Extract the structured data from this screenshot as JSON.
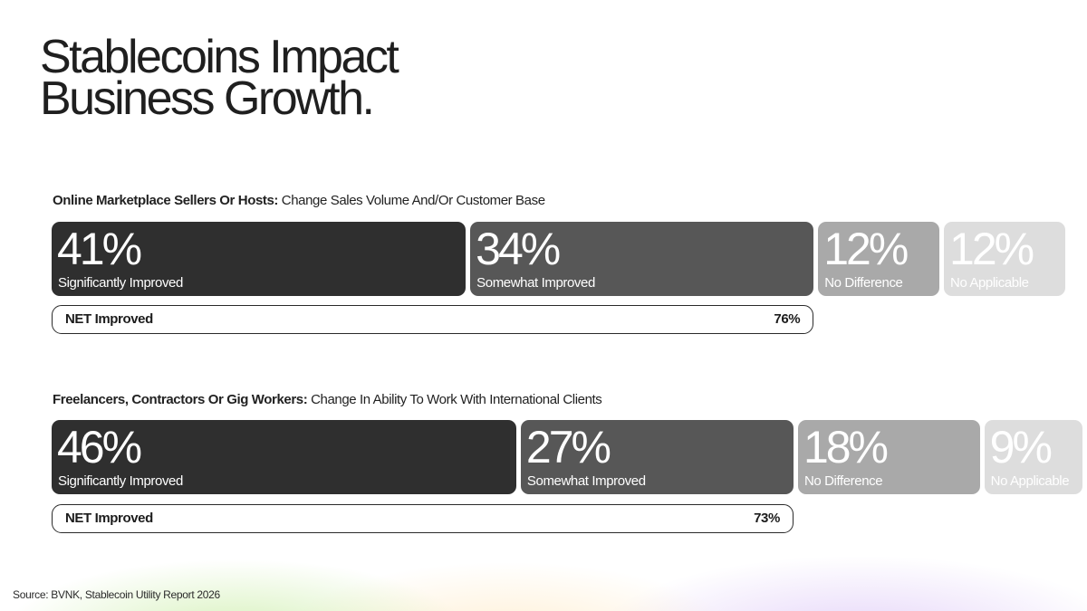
{
  "page": {
    "title_line1": "Stablecoins Impact",
    "title_line2": "Business Growth.",
    "source": "Source: BVNK, Stablecoin Utility Report 2026"
  },
  "chart_data": [
    {
      "type": "bar",
      "orientation": "horizontal-stacked",
      "title_bold": "Online Marketplace Sellers Or Hosts:",
      "title_rest": " Change Sales Volume And/Or Customer Base",
      "segments": [
        {
          "label": "Significantly Improved",
          "value": 41,
          "value_label": "41%",
          "color": "#2f2f2f"
        },
        {
          "label": "Somewhat Improved",
          "value": 34,
          "value_label": "34%",
          "color": "#575757"
        },
        {
          "label": "No Difference",
          "value": 12,
          "value_label": "12%",
          "color": "#a9a9a9"
        },
        {
          "label": "No Applicable",
          "value": 12,
          "value_label": "12%",
          "color": "#dddddd"
        }
      ],
      "net": {
        "label": "NET Improved",
        "value": 76,
        "value_label": "76%"
      }
    },
    {
      "type": "bar",
      "orientation": "horizontal-stacked",
      "title_bold": "Freelancers, Contractors Or Gig Workers:",
      "title_rest": " Change In Ability To Work With International Clients",
      "segments": [
        {
          "label": "Significantly Improved",
          "value": 46,
          "value_label": "46%",
          "color": "#2f2f2f"
        },
        {
          "label": "Somewhat Improved",
          "value": 27,
          "value_label": "27%",
          "color": "#575757"
        },
        {
          "label": "No Difference",
          "value": 18,
          "value_label": "18%",
          "color": "#a9a9a9"
        },
        {
          "label": "No Applicable",
          "value": 9,
          "value_label": "9%",
          "color": "#dddddd"
        }
      ],
      "net": {
        "label": "NET Improved",
        "value": 73,
        "value_label": "73%"
      }
    }
  ]
}
